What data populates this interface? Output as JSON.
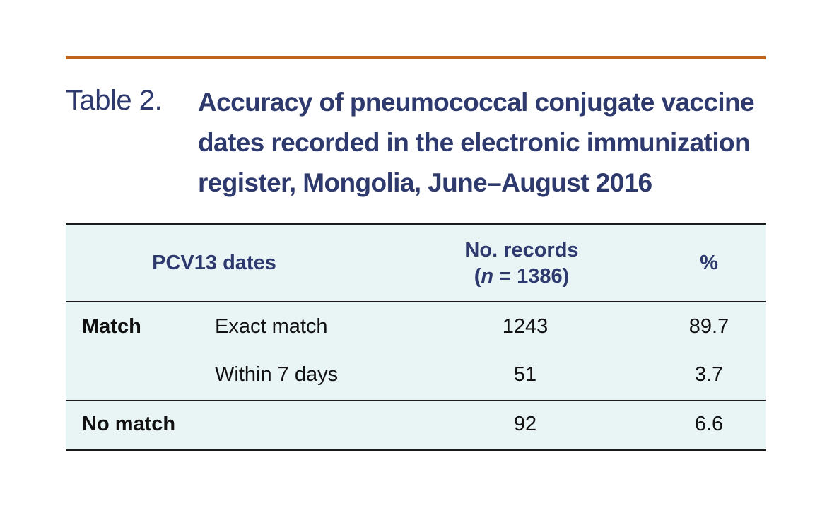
{
  "caption": {
    "label": "Table 2.",
    "title": "Accuracy of pneumococcal conjugate vaccine dates recorded in the electronic immunization register, Mongolia, June–August 2016"
  },
  "table": {
    "columns": {
      "dates": "PCV13 dates",
      "records_line1": "No. records",
      "records_open": "(",
      "records_n": "n",
      "records_rest": " = 1386)",
      "percent": "%"
    },
    "rows": [
      {
        "group": "Match",
        "category": "Exact match",
        "records": "1243",
        "percent": "89.7"
      },
      {
        "group": "",
        "category": "Within 7 days",
        "records": "51",
        "percent": "3.7"
      },
      {
        "group": "No match",
        "category": "",
        "records": "92",
        "percent": "6.6"
      }
    ]
  },
  "colors": {
    "accent_rule": "#c0641b",
    "title_text": "#2e3a6e",
    "table_background": "#e9f5f5"
  }
}
